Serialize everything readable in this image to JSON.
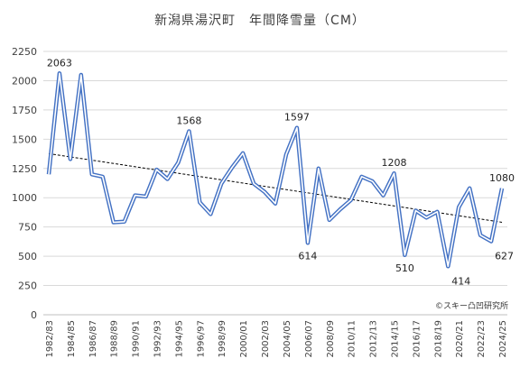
{
  "chart_data": {
    "type": "line",
    "title": "新潟県湯沢町　年間降雪量（CM）",
    "credit": "©スキー凸凹研究所",
    "ylim": [
      0,
      2250
    ],
    "yticks": [
      0,
      250,
      500,
      750,
      1000,
      1250,
      1500,
      1750,
      2000,
      2250
    ],
    "grid": "horizontal",
    "legend": "none",
    "colors": {
      "line_outer": "#4472c4",
      "line_inner": "#ffffff",
      "trend": "#000000",
      "grid": "#d9d9d9",
      "text": "#404040"
    },
    "x": [
      "1982/83",
      "1983/84",
      "1984/85",
      "1985/86",
      "1986/87",
      "1987/88",
      "1988/89",
      "1989/90",
      "1990/91",
      "1991/92",
      "1992/93",
      "1993/94",
      "1994/95",
      "1995/96",
      "1996/97",
      "1997/98",
      "1998/99",
      "1999/00",
      "2000/01",
      "2001/02",
      "2002/03",
      "2003/04",
      "2004/05",
      "2005/06",
      "2006/07",
      "2007/08",
      "2008/09",
      "2009/10",
      "2010/11",
      "2011/12",
      "2012/13",
      "2013/14",
      "2014/15",
      "2015/16",
      "2016/17",
      "2017/18",
      "2018/19",
      "2019/20",
      "2020/21",
      "2021/22",
      "2022/23",
      "2023/24",
      "2024/25"
    ],
    "xtick_labels": [
      "1982/83",
      "1984/85",
      "1986/87",
      "1988/89",
      "1990/91",
      "1992/93",
      "1994/95",
      "1996/97",
      "1998/99",
      "2000/01",
      "2002/03",
      "2004/05",
      "2006/07",
      "2008/09",
      "2010/11",
      "2012/13",
      "2014/15",
      "2016/17",
      "2018/19",
      "2020/21",
      "2022/23",
      "2024/25"
    ],
    "series": [
      {
        "name": "",
        "values": [
          1200,
          2063,
          1330,
          2050,
          1200,
          1180,
          790,
          795,
          1020,
          1010,
          1240,
          1160,
          1300,
          1568,
          960,
          860,
          1120,
          1260,
          1380,
          1120,
          1050,
          950,
          1370,
          1597,
          614,
          1250,
          810,
          900,
          980,
          1180,
          1140,
          1020,
          1208,
          510,
          890,
          830,
          880,
          414,
          920,
          1080,
          680,
          627,
          1080
        ]
      }
    ],
    "data_labels": [
      {
        "index": 1,
        "text": "2063",
        "pos": "above"
      },
      {
        "index": 13,
        "text": "1568",
        "pos": "above"
      },
      {
        "index": 23,
        "text": "1597",
        "pos": "above"
      },
      {
        "index": 24,
        "text": "614",
        "pos": "below"
      },
      {
        "index": 32,
        "text": "1208",
        "pos": "above"
      },
      {
        "index": 33,
        "text": "510",
        "pos": "below"
      },
      {
        "index": 37,
        "text": "414",
        "pos": "below-right"
      },
      {
        "index": 41,
        "text": "627",
        "pos": "below-right"
      },
      {
        "index": 42,
        "text": "1080",
        "pos": "above"
      }
    ],
    "trendline": {
      "type": "linear"
    }
  }
}
